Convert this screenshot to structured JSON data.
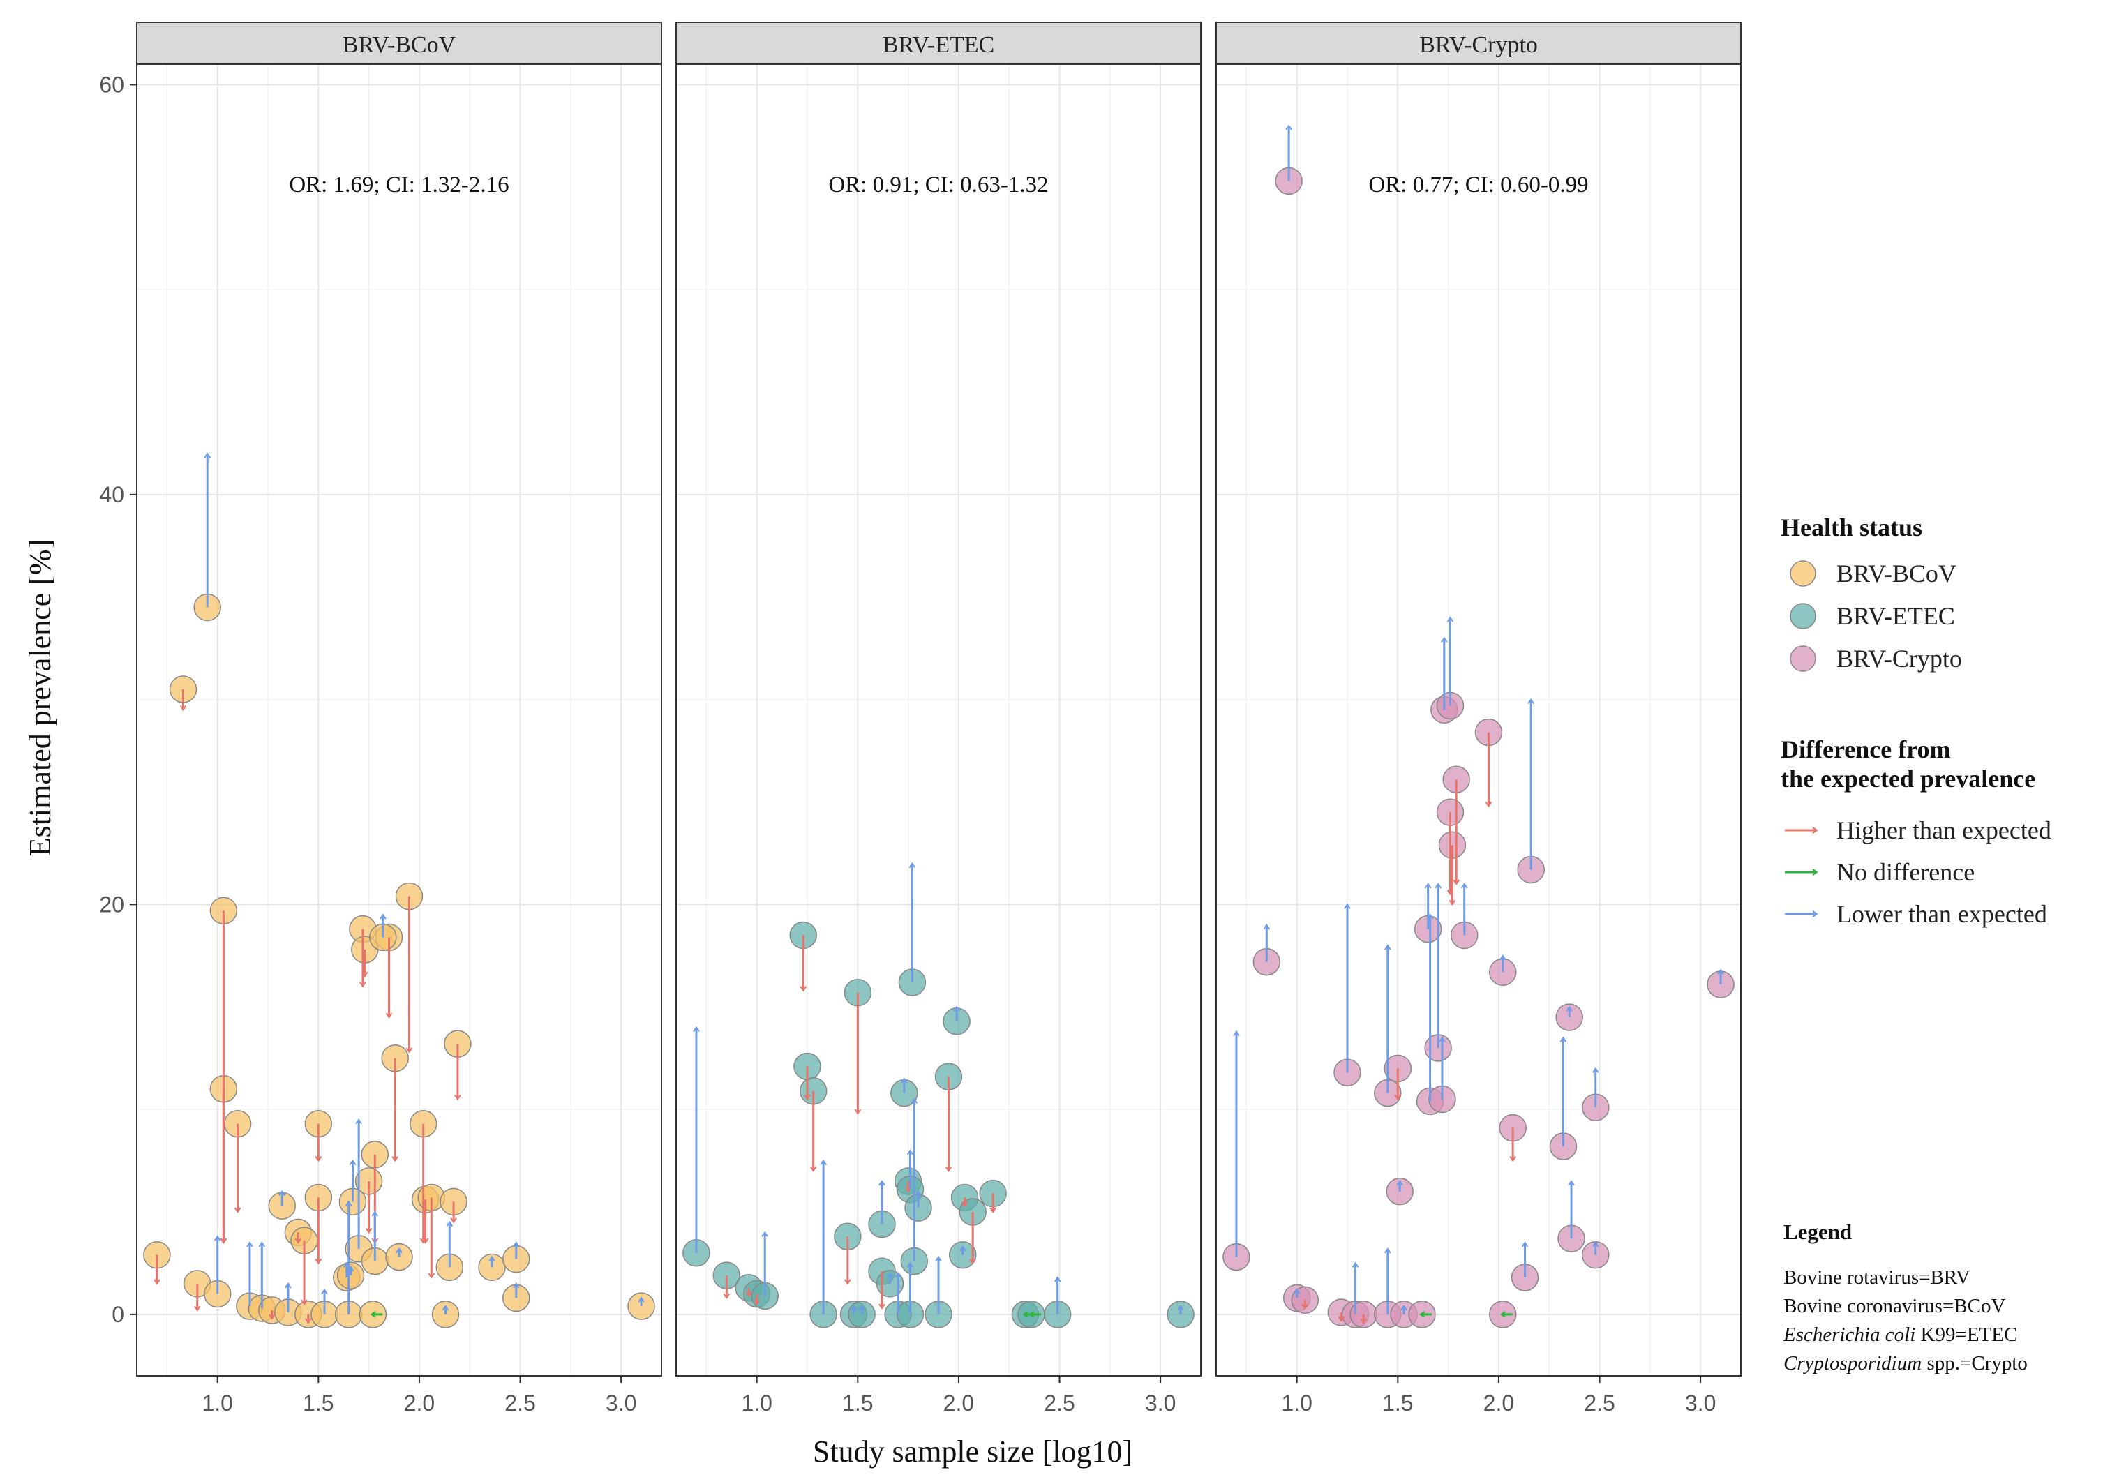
{
  "chart_data": {
    "type": "scatter",
    "xlabel": "Study sample size [log10]",
    "ylabel": "Estimated prevalence [%]",
    "xlim": [
      0.6,
      3.2
    ],
    "ylim": [
      -3,
      61
    ],
    "x_ticks": [
      1.0,
      1.5,
      2.0,
      2.5,
      3.0
    ],
    "x_tick_labels": [
      "1.0",
      "1.5",
      "2.0",
      "2.5",
      "3.0"
    ],
    "y_ticks": [
      0,
      20,
      40,
      60
    ],
    "y_tick_labels": [
      "0",
      "20",
      "40",
      "60"
    ],
    "panels": [
      {
        "name": "BRV-BCoV",
        "annotation": "OR: 1.69; CI: 1.32-2.16",
        "color": "#F5C066",
        "points": [
          {
            "x": 0.95,
            "y": 34.5,
            "to": 42,
            "dir": "lower"
          },
          {
            "x": 0.83,
            "y": 30.5,
            "to": 29.5,
            "dir": "higher"
          },
          {
            "x": 1.03,
            "y": 19.7,
            "to": 3.5,
            "dir": "higher"
          },
          {
            "x": 1.03,
            "y": 11.0,
            "to": 3.5,
            "dir": "higher"
          },
          {
            "x": 1.1,
            "y": 9.3,
            "to": 5.0,
            "dir": "higher"
          },
          {
            "x": 1.5,
            "y": 9.3,
            "to": 7.5,
            "dir": "higher"
          },
          {
            "x": 1.5,
            "y": 5.7,
            "to": 2.5,
            "dir": "higher"
          },
          {
            "x": 1.72,
            "y": 18.8,
            "to": 16.0,
            "dir": "higher"
          },
          {
            "x": 1.73,
            "y": 17.8,
            "to": 16.5,
            "dir": "higher"
          },
          {
            "x": 1.85,
            "y": 18.4,
            "to": 14.5,
            "dir": "higher"
          },
          {
            "x": 1.82,
            "y": 18.4,
            "to": 19.5,
            "dir": "lower"
          },
          {
            "x": 1.95,
            "y": 20.4,
            "to": 12.8,
            "dir": "higher"
          },
          {
            "x": 1.88,
            "y": 12.5,
            "to": 7.5,
            "dir": "higher"
          },
          {
            "x": 2.02,
            "y": 9.3,
            "to": 3.5,
            "dir": "higher"
          },
          {
            "x": 2.03,
            "y": 5.6,
            "to": 3.5,
            "dir": "higher"
          },
          {
            "x": 2.06,
            "y": 5.7,
            "to": 1.8,
            "dir": "higher"
          },
          {
            "x": 2.19,
            "y": 13.2,
            "to": 10.5,
            "dir": "higher"
          },
          {
            "x": 2.17,
            "y": 5.5,
            "to": 4.5,
            "dir": "higher"
          },
          {
            "x": 1.78,
            "y": 7.8,
            "to": 3.5,
            "dir": "higher"
          },
          {
            "x": 1.75,
            "y": 6.5,
            "to": 4.0,
            "dir": "higher"
          },
          {
            "x": 1.7,
            "y": 3.2,
            "to": 9.5,
            "dir": "lower"
          },
          {
            "x": 1.67,
            "y": 5.5,
            "to": 7.5,
            "dir": "lower"
          },
          {
            "x": 1.78,
            "y": 2.6,
            "to": 5.0,
            "dir": "lower"
          },
          {
            "x": 1.9,
            "y": 2.8,
            "to": 3.0,
            "dir": "lower"
          },
          {
            "x": 2.15,
            "y": 2.3,
            "to": 4.5,
            "dir": "lower"
          },
          {
            "x": 2.36,
            "y": 2.3,
            "to": 2.8,
            "dir": "lower"
          },
          {
            "x": 2.48,
            "y": 2.7,
            "to": 3.5,
            "dir": "lower"
          },
          {
            "x": 2.48,
            "y": 0.8,
            "to": 1.5,
            "dir": "lower"
          },
          {
            "x": 1.32,
            "y": 5.3,
            "to": 6.0,
            "dir": "lower"
          },
          {
            "x": 1.4,
            "y": 4.0,
            "to": 3.5,
            "dir": "higher"
          },
          {
            "x": 1.43,
            "y": 3.6,
            "to": 0.5,
            "dir": "higher"
          },
          {
            "x": 0.7,
            "y": 2.9,
            "to": 1.5,
            "dir": "higher"
          },
          {
            "x": 0.9,
            "y": 1.5,
            "to": 0.2,
            "dir": "higher"
          },
          {
            "x": 1.0,
            "y": 1.0,
            "to": 3.8,
            "dir": "lower"
          },
          {
            "x": 1.16,
            "y": 0.4,
            "to": 3.5,
            "dir": "lower"
          },
          {
            "x": 1.22,
            "y": 0.3,
            "to": 3.5,
            "dir": "lower"
          },
          {
            "x": 1.27,
            "y": 0.2,
            "to": 0.3,
            "dir": "higher"
          },
          {
            "x": 1.35,
            "y": 0.1,
            "to": 1.5,
            "dir": "lower"
          },
          {
            "x": 1.45,
            "y": 0.0,
            "to": 0.2,
            "dir": "higher"
          },
          {
            "x": 1.53,
            "y": 0.0,
            "to": 1.2,
            "dir": "lower"
          },
          {
            "x": 1.64,
            "y": 1.8,
            "to": 2.5,
            "dir": "lower"
          },
          {
            "x": 1.66,
            "y": 1.9,
            "to": 2.0,
            "dir": "lower"
          },
          {
            "x": 1.65,
            "y": 0.0,
            "to": 5.5,
            "dir": "lower"
          },
          {
            "x": 1.77,
            "y": 0.0,
            "to": 0.0,
            "dir": "none"
          },
          {
            "x": 2.13,
            "y": 0.0,
            "to": 0.3,
            "dir": "lower"
          },
          {
            "x": 3.1,
            "y": 0.4,
            "to": 0.8,
            "dir": "lower"
          }
        ]
      },
      {
        "name": "BRV-ETEC",
        "annotation": "OR: 0.91; CI: 0.63-1.32",
        "color": "#5FAFAB",
        "points": [
          {
            "x": 0.7,
            "y": 3.0,
            "to": 14.0,
            "dir": "lower"
          },
          {
            "x": 0.85,
            "y": 1.9,
            "to": 0.8,
            "dir": "higher"
          },
          {
            "x": 0.96,
            "y": 1.3,
            "to": 0.9,
            "dir": "higher"
          },
          {
            "x": 1.0,
            "y": 1.0,
            "to": 0.5,
            "dir": "higher"
          },
          {
            "x": 1.04,
            "y": 0.9,
            "to": 4.0,
            "dir": "lower"
          },
          {
            "x": 1.23,
            "y": 18.5,
            "to": 15.8,
            "dir": "higher"
          },
          {
            "x": 1.25,
            "y": 12.1,
            "to": 10.5,
            "dir": "higher"
          },
          {
            "x": 1.28,
            "y": 10.9,
            "to": 7.0,
            "dir": "higher"
          },
          {
            "x": 1.33,
            "y": 0.0,
            "to": 7.5,
            "dir": "lower"
          },
          {
            "x": 1.45,
            "y": 3.8,
            "to": 1.5,
            "dir": "higher"
          },
          {
            "x": 1.5,
            "y": 15.7,
            "to": 9.8,
            "dir": "higher"
          },
          {
            "x": 1.48,
            "y": 0.0,
            "to": 0.2,
            "dir": "lower"
          },
          {
            "x": 1.52,
            "y": 0.0,
            "to": 0.1,
            "dir": "lower"
          },
          {
            "x": 1.62,
            "y": 4.4,
            "to": 6.5,
            "dir": "lower"
          },
          {
            "x": 1.62,
            "y": 2.1,
            "to": 0.3,
            "dir": "higher"
          },
          {
            "x": 1.66,
            "y": 1.5,
            "to": 2.0,
            "dir": "lower"
          },
          {
            "x": 1.7,
            "y": 0.0,
            "to": 2.0,
            "dir": "lower"
          },
          {
            "x": 1.73,
            "y": 10.8,
            "to": 11.5,
            "dir": "lower"
          },
          {
            "x": 1.75,
            "y": 6.5,
            "to": 6.0,
            "dir": "higher"
          },
          {
            "x": 1.76,
            "y": 6.1,
            "to": 8.0,
            "dir": "lower"
          },
          {
            "x": 1.77,
            "y": 16.2,
            "to": 22.0,
            "dir": "lower"
          },
          {
            "x": 1.78,
            "y": 2.6,
            "to": 10.5,
            "dir": "lower"
          },
          {
            "x": 1.8,
            "y": 5.2,
            "to": 6.0,
            "dir": "lower"
          },
          {
            "x": 1.76,
            "y": 0.0,
            "to": 2.5,
            "dir": "lower"
          },
          {
            "x": 1.9,
            "y": 0.0,
            "to": 2.8,
            "dir": "lower"
          },
          {
            "x": 1.95,
            "y": 11.6,
            "to": 7.0,
            "dir": "higher"
          },
          {
            "x": 1.99,
            "y": 14.3,
            "to": 15.0,
            "dir": "lower"
          },
          {
            "x": 2.02,
            "y": 2.9,
            "to": 3.0,
            "dir": "lower"
          },
          {
            "x": 2.03,
            "y": 5.7,
            "to": 5.5,
            "dir": "higher"
          },
          {
            "x": 2.07,
            "y": 5.0,
            "to": 2.5,
            "dir": "higher"
          },
          {
            "x": 2.17,
            "y": 5.9,
            "to": 5.0,
            "dir": "higher"
          },
          {
            "x": 2.33,
            "y": 0.0,
            "to": 0.0,
            "dir": "none"
          },
          {
            "x": 2.36,
            "y": 0.0,
            "to": 0.0,
            "dir": "none"
          },
          {
            "x": 2.49,
            "y": 0.0,
            "to": 1.8,
            "dir": "lower"
          },
          {
            "x": 3.1,
            "y": 0.0,
            "to": 0.0,
            "dir": "lower"
          }
        ]
      },
      {
        "name": "BRV-Crypto",
        "annotation": "OR: 0.77; CI: 0.60-0.99",
        "color": "#D591B5",
        "points": [
          {
            "x": 0.96,
            "y": 55.3,
            "to": 58.0,
            "dir": "lower"
          },
          {
            "x": 0.7,
            "y": 2.8,
            "to": 13.8,
            "dir": "lower"
          },
          {
            "x": 0.85,
            "y": 17.2,
            "to": 19.0,
            "dir": "lower"
          },
          {
            "x": 1.0,
            "y": 0.8,
            "to": 0.9,
            "dir": "lower"
          },
          {
            "x": 1.04,
            "y": 0.7,
            "to": 0.6,
            "dir": "higher"
          },
          {
            "x": 1.22,
            "y": 0.1,
            "to": 0.3,
            "dir": "higher"
          },
          {
            "x": 1.25,
            "y": 11.8,
            "to": 20.0,
            "dir": "lower"
          },
          {
            "x": 1.29,
            "y": 0.0,
            "to": 2.5,
            "dir": "lower"
          },
          {
            "x": 1.33,
            "y": 0.0,
            "to": 0.2,
            "dir": "higher"
          },
          {
            "x": 1.45,
            "y": 10.8,
            "to": 18.0,
            "dir": "lower"
          },
          {
            "x": 1.45,
            "y": 0.0,
            "to": 3.2,
            "dir": "lower"
          },
          {
            "x": 1.5,
            "y": 12.0,
            "to": 10.5,
            "dir": "higher"
          },
          {
            "x": 1.51,
            "y": 6.0,
            "to": 6.5,
            "dir": "lower"
          },
          {
            "x": 1.53,
            "y": 0.0,
            "to": 0.3,
            "dir": "lower"
          },
          {
            "x": 1.62,
            "y": 0.0,
            "to": 0.0,
            "dir": "none"
          },
          {
            "x": 1.65,
            "y": 18.8,
            "to": 21.0,
            "dir": "lower"
          },
          {
            "x": 1.66,
            "y": 10.4,
            "to": 19.5,
            "dir": "lower"
          },
          {
            "x": 1.7,
            "y": 13.0,
            "to": 21.0,
            "dir": "lower"
          },
          {
            "x": 1.72,
            "y": 10.5,
            "to": 13.5,
            "dir": "lower"
          },
          {
            "x": 1.73,
            "y": 29.5,
            "to": 33.0,
            "dir": "lower"
          },
          {
            "x": 1.76,
            "y": 29.7,
            "to": 34.0,
            "dir": "lower"
          },
          {
            "x": 1.76,
            "y": 24.5,
            "to": 20.5,
            "dir": "higher"
          },
          {
            "x": 1.77,
            "y": 22.9,
            "to": 20.0,
            "dir": "higher"
          },
          {
            "x": 1.79,
            "y": 26.1,
            "to": 21.0,
            "dir": "higher"
          },
          {
            "x": 1.83,
            "y": 18.5,
            "to": 21.0,
            "dir": "lower"
          },
          {
            "x": 1.95,
            "y": 28.4,
            "to": 24.8,
            "dir": "higher"
          },
          {
            "x": 2.02,
            "y": 16.7,
            "to": 17.5,
            "dir": "lower"
          },
          {
            "x": 2.02,
            "y": 0.0,
            "to": 0.0,
            "dir": "none"
          },
          {
            "x": 2.07,
            "y": 9.1,
            "to": 7.5,
            "dir": "higher"
          },
          {
            "x": 2.13,
            "y": 1.8,
            "to": 3.5,
            "dir": "lower"
          },
          {
            "x": 2.16,
            "y": 21.7,
            "to": 30.0,
            "dir": "lower"
          },
          {
            "x": 2.32,
            "y": 8.2,
            "to": 13.5,
            "dir": "lower"
          },
          {
            "x": 2.35,
            "y": 14.5,
            "to": 15.0,
            "dir": "lower"
          },
          {
            "x": 2.36,
            "y": 3.7,
            "to": 6.5,
            "dir": "lower"
          },
          {
            "x": 2.48,
            "y": 10.1,
            "to": 12.0,
            "dir": "lower"
          },
          {
            "x": 2.48,
            "y": 2.9,
            "to": 3.5,
            "dir": "lower"
          },
          {
            "x": 3.1,
            "y": 16.1,
            "to": 16.8,
            "dir": "lower"
          }
        ]
      }
    ],
    "legend": {
      "health_title": "Health status",
      "health_items": [
        {
          "label": "BRV-BCoV",
          "color": "#F5C066"
        },
        {
          "label": "BRV-ETEC",
          "color": "#5FAFAB"
        },
        {
          "label": "BRV-Crypto",
          "color": "#D591B5"
        }
      ],
      "diff_title_1": "Difference from",
      "diff_title_2": "the expected prevalence",
      "diff_items": [
        {
          "label": "Higher than expected",
          "color": "#E8736B"
        },
        {
          "label": "No difference",
          "color": "#2CB53A"
        },
        {
          "label": "Lower than expected",
          "color": "#6E9BE8"
        }
      ]
    },
    "note": {
      "title": "Legend",
      "line1": "Bovine rotavirus=BRV",
      "line2": "Bovine coronavirus=BCoV",
      "line3_italic": "Escherichia coli",
      "line3_rest": " K99=ETEC",
      "line4_italic": "Cryptosporidium",
      "line4_rest": " spp.=Crypto"
    }
  }
}
